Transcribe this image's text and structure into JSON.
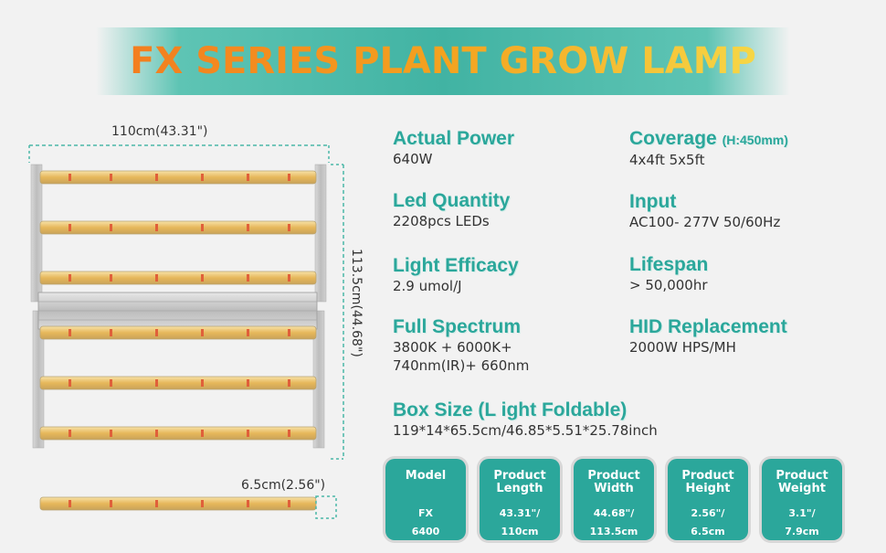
{
  "title": "FX SERIES PLANT GROW LAMP",
  "colors": {
    "accent": "#2ba79b",
    "banner": "#41b3a3",
    "title_orange": "#f37a1f",
    "title_yellow": "#f6dc4a",
    "led_yellow": "#e9c46a"
  },
  "dimensions": {
    "width_label": "110cm(43.31\")",
    "height_label": "113.5cm(44.68\")",
    "bar_label": "6.5cm(2.56\")"
  },
  "specs": {
    "actual_power": {
      "label": "Actual Power",
      "value": "640W"
    },
    "coverage": {
      "label": "Coverage",
      "note": "(H:450mm)",
      "value": "4x4ft  5x5ft"
    },
    "led_quantity": {
      "label": "Led Quantity",
      "value": "2208pcs LEDs"
    },
    "input": {
      "label": "Input",
      "value": "AC100- 277V 50/60Hz"
    },
    "light_efficacy": {
      "label": "Light Efficacy",
      "value": "2.9 umol/J"
    },
    "lifespan": {
      "label": "Lifespan",
      "value": "> 50,000hr"
    },
    "full_spectrum": {
      "label": "Full Spectrum",
      "value1": "3800K + 6000K+",
      "value2": "740nm(IR)+ 660nm"
    },
    "hid_replacement": {
      "label": "HID Replacement",
      "value": "2000W HPS/MH"
    },
    "box_size": {
      "label": "Box Size (L ight Foldable)",
      "value": "119*14*65.5cm/46.85*5.51*25.78inch"
    }
  },
  "cards": [
    {
      "label1": "Model",
      "label2": "",
      "value1": "FX",
      "value2": "6400"
    },
    {
      "label1": "Product",
      "label2": "Length",
      "value1": "43.31\"/",
      "value2": "110cm"
    },
    {
      "label1": "Product",
      "label2": "Width",
      "value1": "44.68\"/",
      "value2": "113.5cm"
    },
    {
      "label1": "Product",
      "label2": "Height",
      "value1": "2.56\"/",
      "value2": "6.5cm"
    },
    {
      "label1": "Product",
      "label2": "Weight",
      "value1": "3.1\"/",
      "value2": "7.9cm"
    }
  ]
}
